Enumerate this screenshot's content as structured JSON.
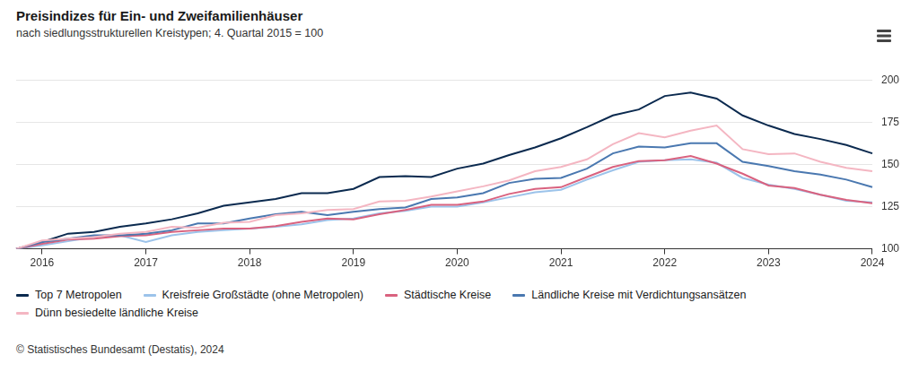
{
  "chart_data": {
    "type": "line",
    "title": "Preisindizes für Ein- und Zweifamilienhäuser",
    "subtitle": "nach siedlungsstrukturellen Kreistypen; 4. Quartal 2015 = 100",
    "source": "© Statistisches Bundesamt (Destatis), 2024",
    "categories": [
      null,
      "2016",
      null,
      null,
      null,
      "2017",
      null,
      null,
      null,
      "2018",
      null,
      null,
      null,
      "2019",
      null,
      null,
      null,
      "2020",
      null,
      null,
      null,
      "2021",
      null,
      null,
      null,
      "2022",
      null,
      null,
      null,
      "2023",
      null,
      null,
      null,
      "2024"
    ],
    "series": [
      {
        "name": "Top 7 Metropolen",
        "color": "#0b2a4f",
        "values": [
          100,
          104,
          109,
          110,
          113,
          115,
          117.5,
          121,
          125.5,
          127.5,
          129.5,
          133,
          133,
          135.5,
          142.5,
          143,
          142.5,
          147.5,
          150.5,
          155.5,
          160,
          165.5,
          172,
          179,
          182.5,
          190.5,
          192.5,
          189,
          179,
          173,
          168,
          165,
          161.5,
          156.5
        ]
      },
      {
        "name": "Kreisfreie Großstädte (ohne Metropolen)",
        "color": "#9cc3ea",
        "values": [
          100,
          102,
          104.5,
          107,
          108,
          104,
          108,
          110,
          111,
          112,
          113,
          114.5,
          117,
          118,
          121,
          122.5,
          125,
          125,
          127.5,
          130.5,
          133.5,
          135,
          141,
          146.5,
          151.5,
          152.5,
          153,
          151,
          142,
          138,
          135.5,
          132,
          128.5,
          127.5
        ]
      },
      {
        "name": "Städtische Kreise",
        "color": "#d9627f",
        "values": [
          100,
          103,
          105.5,
          106,
          107.5,
          108,
          110,
          111,
          112,
          112,
          113.5,
          116,
          118,
          117.5,
          120.5,
          123,
          126,
          126,
          128,
          132.5,
          135.5,
          136.5,
          142.5,
          148.5,
          152,
          152.5,
          155,
          150.5,
          144.5,
          137.5,
          136,
          132,
          129,
          127
        ]
      },
      {
        "name": "Ländliche Kreise mit Verdichtungsansätzen",
        "color": "#4a78b0",
        "values": [
          100,
          104,
          106,
          108,
          108,
          109,
          111,
          115,
          115,
          118,
          120.5,
          122,
          120,
          122,
          123.5,
          124.5,
          129.5,
          130.5,
          133,
          139,
          141.5,
          142,
          147.5,
          156.5,
          160.5,
          160,
          162.5,
          162.5,
          151.5,
          149,
          146,
          144,
          141,
          136.5
        ]
      },
      {
        "name": "Dünn besiedelte ländliche Kreise",
        "color": "#f4b6c2",
        "values": [
          100,
          105,
          106,
          107,
          109,
          110,
          113,
          112.5,
          115.5,
          116,
          120,
          121,
          123,
          123.5,
          128,
          128.5,
          131,
          134,
          137,
          140.5,
          146,
          148.5,
          153,
          162,
          168.5,
          166,
          170,
          173,
          159,
          156,
          156.5,
          151.5,
          148,
          146
        ]
      }
    ],
    "ylim": [
      100,
      200
    ],
    "yticks": [
      100,
      125,
      150,
      175,
      200
    ],
    "grid": true,
    "legend": "bottom"
  }
}
